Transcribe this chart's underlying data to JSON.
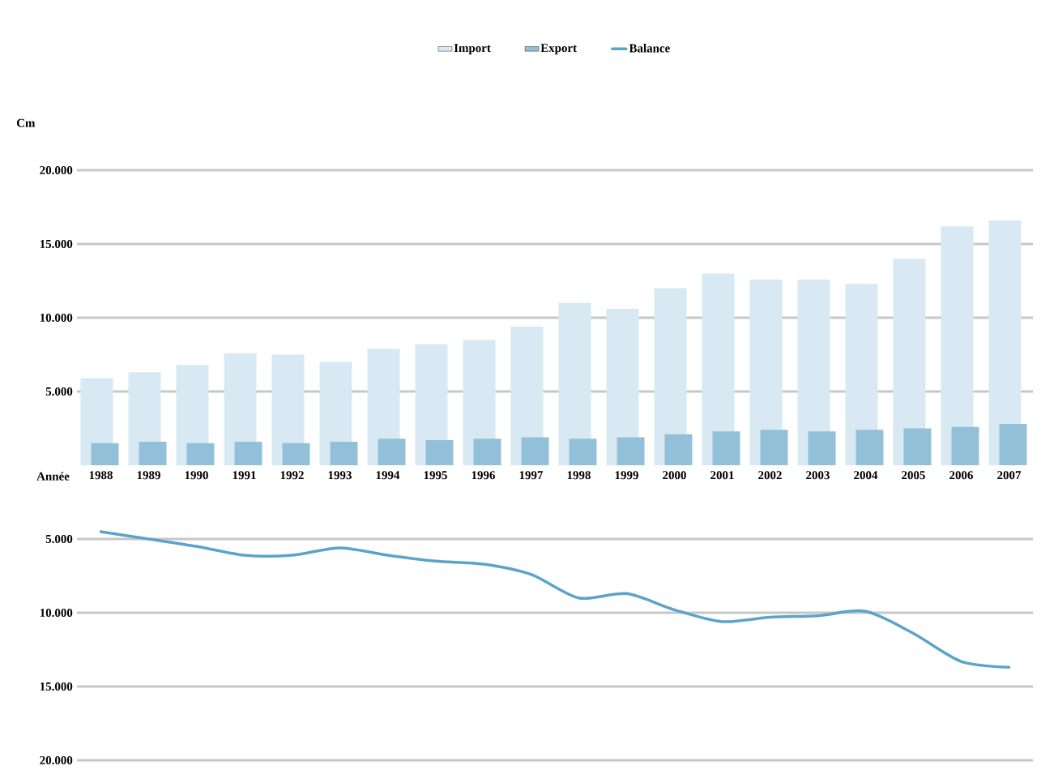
{
  "chart_data": {
    "type": "bar",
    "xlabel": "Année",
    "ylabel": "Cm",
    "categories": [
      "1988",
      "1989",
      "1990",
      "1991",
      "1992",
      "1993",
      "1994",
      "1995",
      "1996",
      "1997",
      "1998",
      "1999",
      "2000",
      "2001",
      "2002",
      "2003",
      "2004",
      "2005",
      "2006",
      "2007"
    ],
    "series": [
      {
        "name": "Import",
        "color": "#d8e9f3",
        "values": [
          5900,
          6300,
          6800,
          7600,
          7500,
          7000,
          7900,
          8200,
          8500,
          9400,
          11000,
          10600,
          12000,
          13000,
          12600,
          12600,
          12300,
          14000,
          16200,
          16600
        ]
      },
      {
        "name": "Export",
        "color": "#93c0d9",
        "values": [
          1500,
          1600,
          1500,
          1600,
          1500,
          1600,
          1800,
          1700,
          1800,
          1900,
          1800,
          1900,
          2100,
          2300,
          2400,
          2300,
          2400,
          2500,
          2600,
          2800
        ]
      },
      {
        "name": "Balance",
        "type": "line",
        "color": "#5ba4c9",
        "values": [
          -4500,
          -5000,
          -5500,
          -6100,
          -6100,
          -5600,
          -6100,
          -6500,
          -6700,
          -7400,
          -9000,
          -8700,
          -9800,
          -10600,
          -10300,
          -10200,
          -9900,
          -11400,
          -13300,
          -13700
        ]
      }
    ],
    "ylim": [
      -20000,
      20000
    ],
    "yticks": [
      {
        "value": 20000,
        "label": "20.000"
      },
      {
        "value": 15000,
        "label": "15.000"
      },
      {
        "value": 10000,
        "label": "10.000"
      },
      {
        "value": 5000,
        "label": "5.000"
      },
      {
        "value": -5000,
        "label": "5.000"
      },
      {
        "value": -10000,
        "label": "10.000"
      },
      {
        "value": -15000,
        "label": "15.000"
      },
      {
        "value": -20000,
        "label": "20.000"
      }
    ],
    "grid": "y",
    "legend": "top",
    "marker": "none",
    "line_style": "solid"
  }
}
